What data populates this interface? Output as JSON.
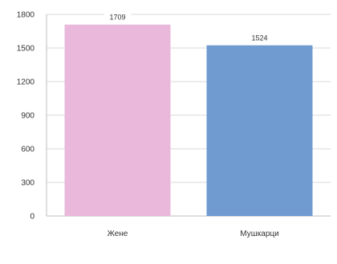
{
  "chart_data": {
    "type": "bar",
    "categories": [
      "Жене",
      "Мушкарци"
    ],
    "values": [
      1709,
      1524
    ],
    "data_labels": [
      "1709",
      "1524"
    ],
    "ylim": [
      0,
      1800
    ],
    "yticks": [
      0,
      300,
      600,
      900,
      1200,
      1500,
      1800
    ],
    "ytick_labels": [
      "0",
      "300",
      "600",
      "900",
      "1200",
      "1500",
      "1800"
    ],
    "grid": true,
    "colors": [
      "#e9b8db",
      "#6f9bd1"
    ],
    "title": "",
    "xlabel": "",
    "ylabel": ""
  }
}
